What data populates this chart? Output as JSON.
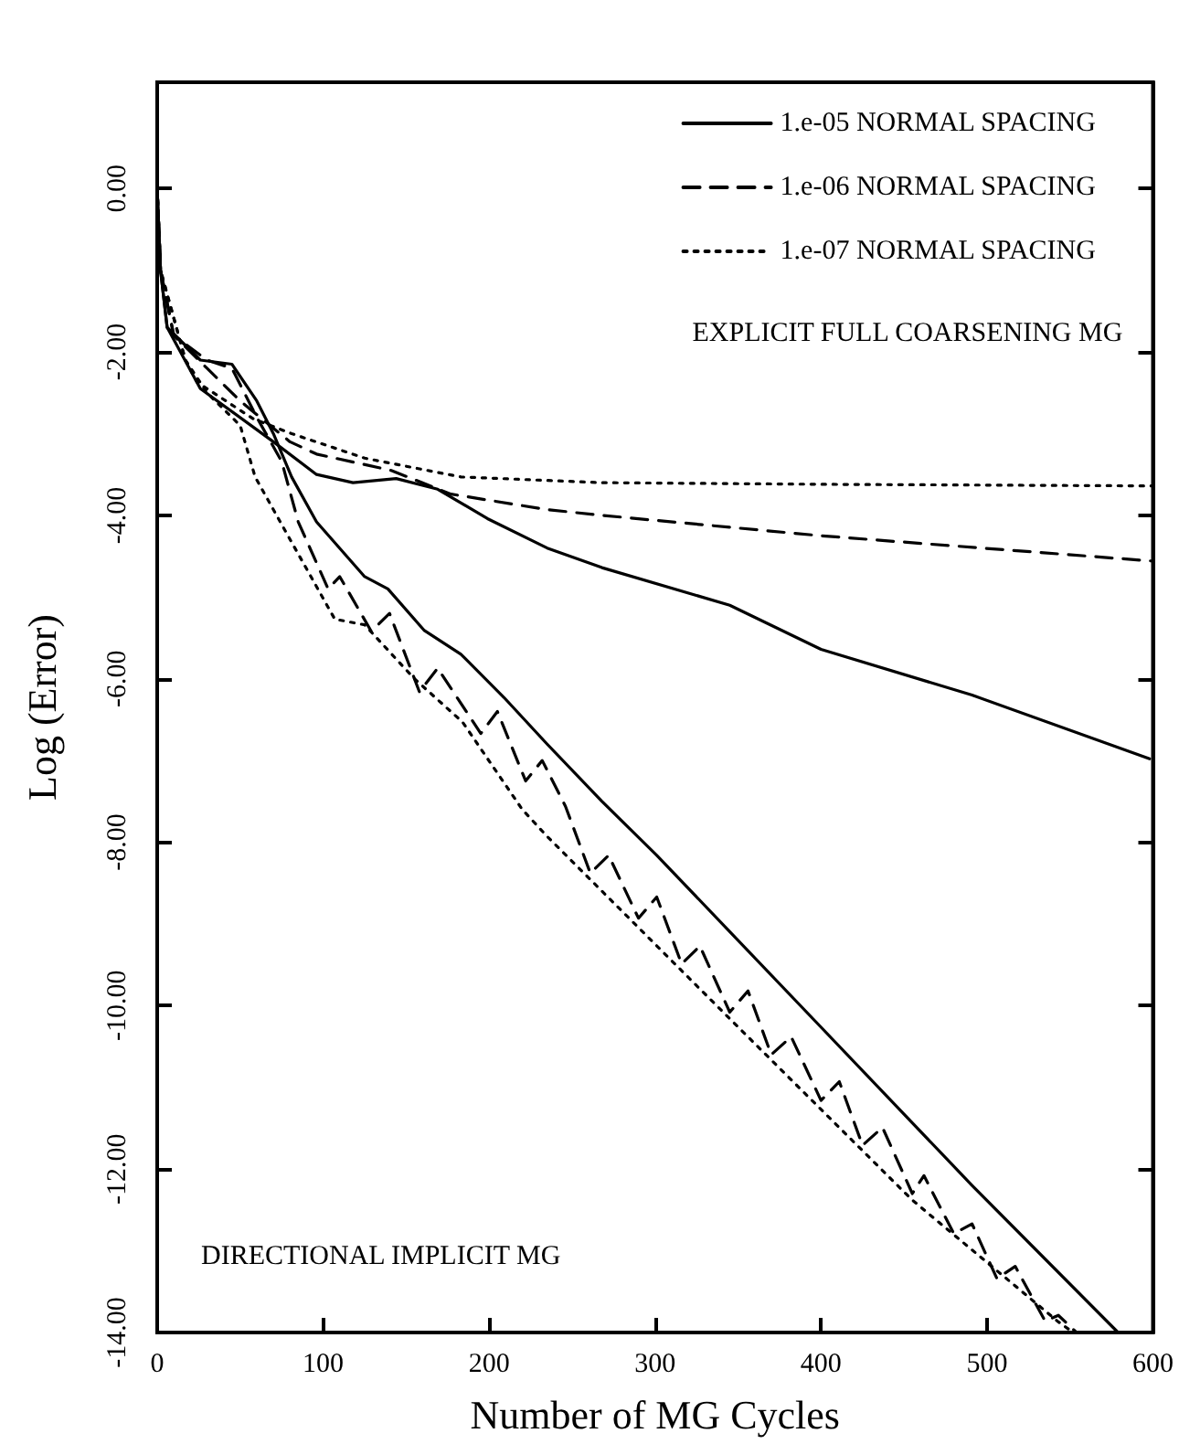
{
  "chart_data": {
    "type": "line",
    "xlabel": "Number of MG Cycles",
    "ylabel": "Log (Error)",
    "xlim": [
      0,
      600
    ],
    "xticks": [
      0,
      100,
      200,
      300,
      400,
      500,
      600
    ],
    "ylim": [
      -14,
      1.3
    ],
    "yticks": [
      {
        "value": 0,
        "label": "0.00"
      },
      {
        "value": -2,
        "label": "-2.00"
      },
      {
        "value": -4,
        "label": "-4.00"
      },
      {
        "value": -6,
        "label": "-6.00"
      },
      {
        "value": -8,
        "label": "-8.00"
      },
      {
        "value": -10,
        "label": "-10.00"
      },
      {
        "value": -12,
        "label": "-12.00"
      },
      {
        "value": -14,
        "label": "-14.00"
      }
    ],
    "grid": false,
    "legend": "top right",
    "marker": "none",
    "annotations": [
      "EXPLICIT FULL COARSENING MG",
      "DIRECTIONAL IMPLICIT MG"
    ],
    "series": [
      {
        "name": "1.e-05 NORMAL SPACING",
        "color": "#000000",
        "line_style": "solid",
        "x": [
          0,
          2,
          6,
          26,
          70,
          96,
          118,
          144,
          169,
          199,
          235,
          268,
          345,
          400,
          491,
          598
        ],
        "values": [
          0,
          -1.0,
          -1.7,
          -2.45,
          -3.1,
          -3.5,
          -3.6,
          -3.55,
          -3.68,
          -4.04,
          -4.4,
          -4.64,
          -5.1,
          -5.64,
          -6.2,
          -6.98
        ]
      },
      {
        "name": "1.e-06 NORMAL SPACING",
        "color": "#000000",
        "line_style": "dashed",
        "x": [
          0,
          2,
          10,
          30,
          50,
          80,
          96,
          141,
          177,
          235,
          268,
          400,
          600
        ],
        "values": [
          0,
          -1.0,
          -1.8,
          -2.2,
          -2.6,
          -3.1,
          -3.25,
          -3.45,
          -3.74,
          -3.93,
          -4.0,
          -4.25,
          -4.56
        ]
      },
      {
        "name": "1.e-07 NORMAL SPACING",
        "color": "#000000",
        "line_style": "dotted",
        "x": [
          0,
          2,
          17,
          24,
          58,
          81,
          125,
          183,
          268,
          400,
          600
        ],
        "values": [
          0,
          -1.0,
          -2.1,
          -2.37,
          -2.82,
          -3.0,
          -3.3,
          -3.53,
          -3.6,
          -3.62,
          -3.64
        ]
      },
      {
        "color": "#000000",
        "line_style": "solid",
        "x": [
          0,
          2,
          6,
          26,
          45,
          60,
          70,
          81,
          96,
          125,
          139,
          161,
          183,
          209,
          235,
          268,
          301,
          397,
          491,
          579
        ],
        "values": [
          0,
          -1.0,
          -1.7,
          -2.1,
          -2.15,
          -2.6,
          -3.0,
          -3.53,
          -4.08,
          -4.75,
          -4.9,
          -5.41,
          -5.7,
          -6.23,
          -6.8,
          -7.5,
          -8.16,
          -10.2,
          -12.2,
          -14.0
        ]
      },
      {
        "color": "#000000",
        "line_style": "dashed",
        "x": [
          0,
          2,
          10,
          30,
          45,
          60,
          75,
          85,
          103,
          110,
          129,
          140,
          158,
          169,
          195,
          205,
          222,
          232,
          246,
          261,
          272,
          290,
          301,
          316,
          327,
          345,
          356,
          370,
          382,
          400,
          411,
          425,
          437,
          455,
          462,
          480,
          491,
          506,
          517,
          535,
          543,
          554
        ],
        "values": [
          0,
          -1.0,
          -1.8,
          -2.1,
          -2.2,
          -2.8,
          -3.34,
          -4.08,
          -4.9,
          -4.75,
          -5.42,
          -5.2,
          -6.16,
          -5.87,
          -6.67,
          -6.4,
          -7.25,
          -7.0,
          -7.56,
          -8.38,
          -8.16,
          -8.93,
          -8.67,
          -9.49,
          -9.27,
          -10.08,
          -9.82,
          -10.6,
          -10.38,
          -11.16,
          -10.93,
          -11.71,
          -11.49,
          -12.3,
          -12.08,
          -12.79,
          -12.67,
          -13.34,
          -13.19,
          -13.86,
          -13.79,
          -14.0
        ]
      },
      {
        "color": "#000000",
        "line_style": "dotted",
        "x": [
          0,
          2,
          17,
          30,
          50,
          59,
          78,
          107,
          125,
          155,
          184,
          220,
          235,
          345,
          455,
          543,
          552
        ],
        "values": [
          0,
          -1.0,
          -2.1,
          -2.5,
          -2.9,
          -3.53,
          -4.22,
          -5.27,
          -5.34,
          -6.0,
          -6.53,
          -7.6,
          -7.93,
          -10.16,
          -12.38,
          -13.87,
          -14.0
        ]
      }
    ]
  }
}
